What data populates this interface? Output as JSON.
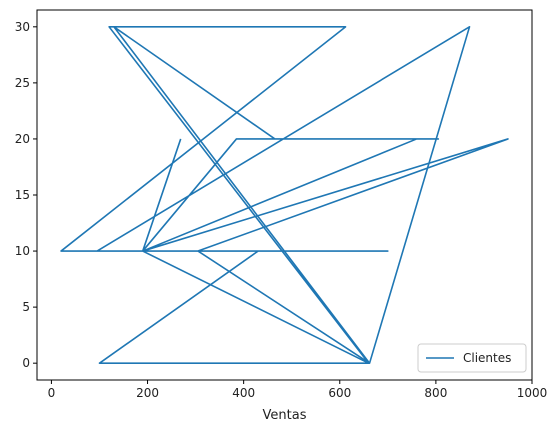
{
  "chart_data": {
    "type": "line",
    "xlabel": "Ventas",
    "ylabel": "",
    "xlim": [
      -30,
      1000
    ],
    "ylim": [
      -1.5,
      31.5
    ],
    "xticks": [
      0,
      200,
      400,
      600,
      800,
      1000
    ],
    "yticks": [
      0,
      5,
      10,
      15,
      20,
      25,
      30
    ],
    "legend_position": "lower-right",
    "series": [
      {
        "name": "Clientes",
        "color": "#1f77b4",
        "x": [
          269,
          190,
          430,
          100,
          105,
          662,
          130,
          465,
          805,
          385,
          190,
          950,
          305,
          662,
          870,
          95,
          700,
          20,
          612,
          120,
          660,
          190,
          760
        ],
        "y": [
          20,
          10,
          10,
          0,
          0,
          0,
          30,
          20,
          20,
          20,
          10,
          20,
          10,
          0,
          30,
          10,
          10,
          10,
          30,
          30,
          0,
          10,
          20
        ]
      }
    ]
  }
}
